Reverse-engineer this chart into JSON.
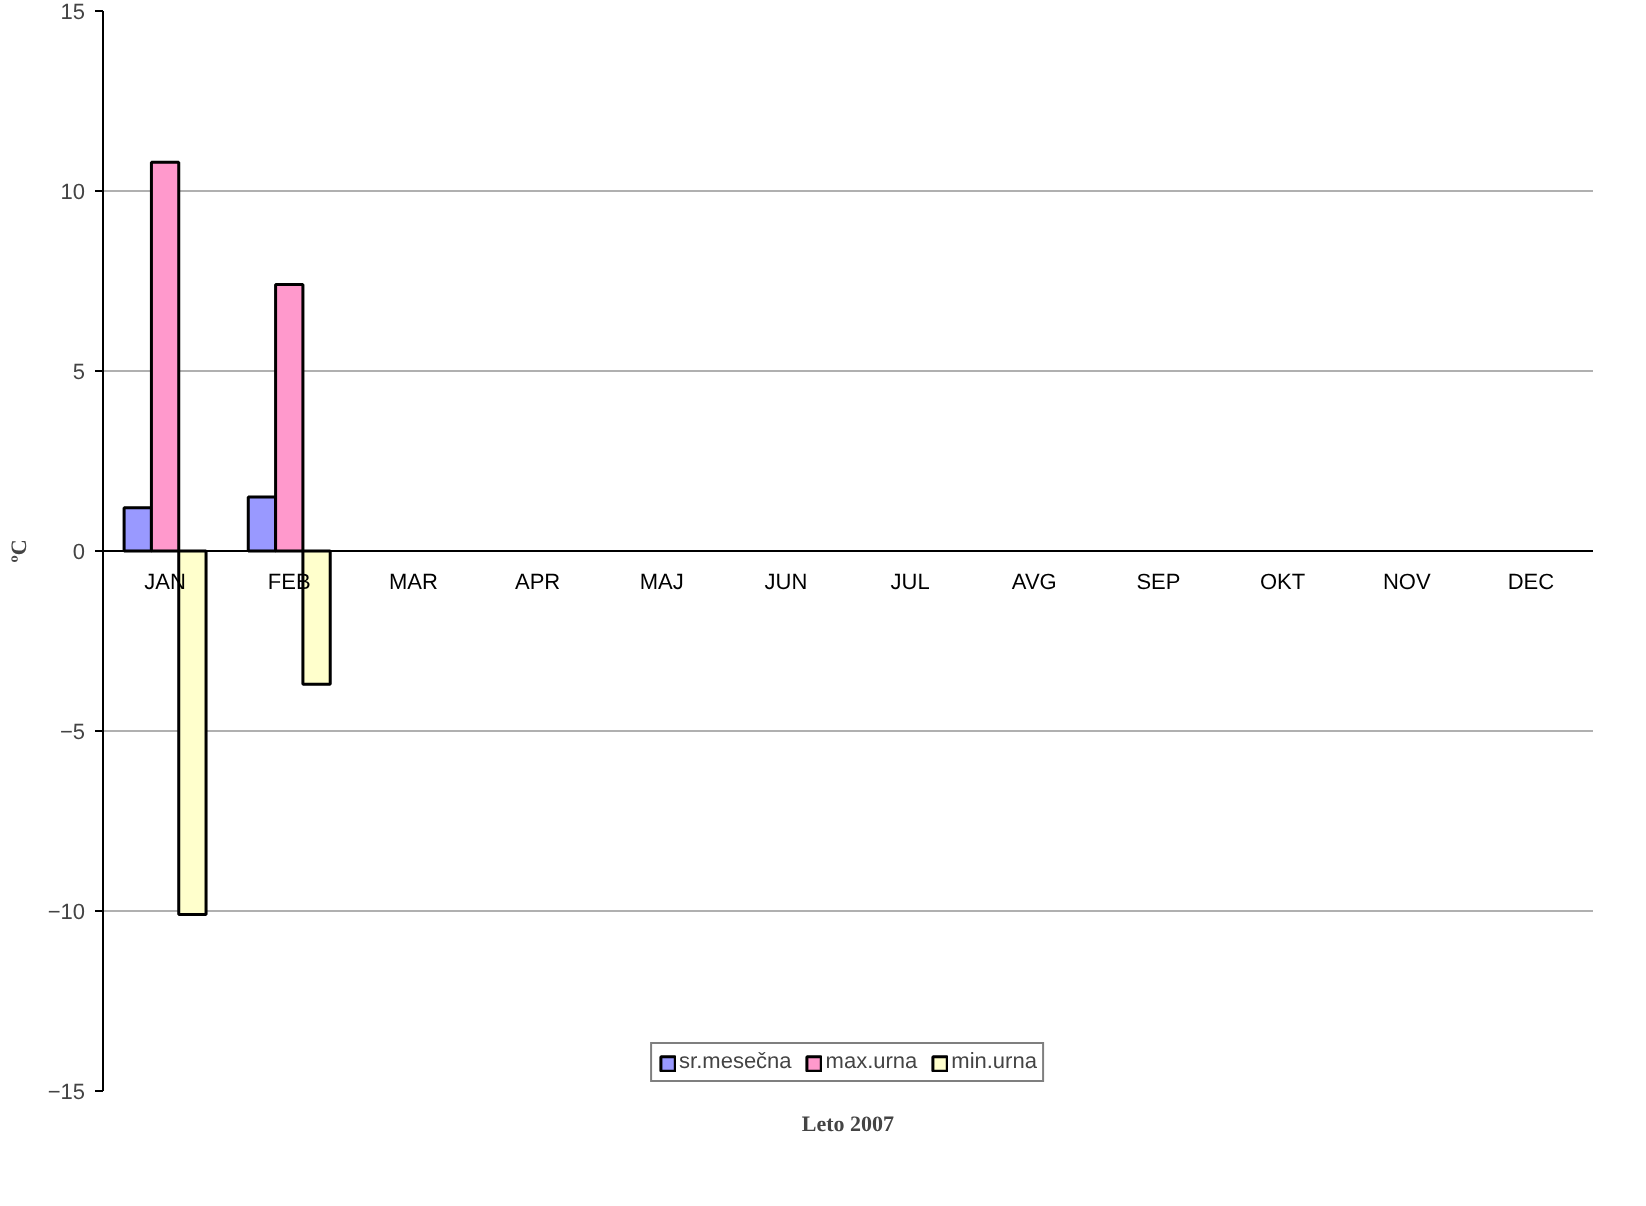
{
  "chart_data": {
    "type": "bar",
    "xlabel": "Leto 2007",
    "ylabel": "ºC",
    "categories": [
      "JAN",
      "FEB",
      "MAR",
      "APR",
      "MAJ",
      "JUN",
      "JUL",
      "AVG",
      "SEP",
      "OKT",
      "NOV",
      "DEC"
    ],
    "series": [
      {
        "name": "sr.mesečna",
        "color": "#9999ff",
        "values": [
          1.2,
          1.5,
          null,
          null,
          null,
          null,
          null,
          null,
          null,
          null,
          null,
          null
        ]
      },
      {
        "name": "max.urna",
        "color": "#ff99cc",
        "values": [
          10.8,
          7.4,
          null,
          null,
          null,
          null,
          null,
          null,
          null,
          null,
          null,
          null
        ]
      },
      {
        "name": "min.urna",
        "color": "#ffffcc",
        "values": [
          -10.1,
          -3.7,
          null,
          null,
          null,
          null,
          null,
          null,
          null,
          null,
          null,
          null
        ]
      }
    ],
    "ylim": [
      -15,
      15
    ],
    "yticks": [
      -15,
      -10,
      -5,
      0,
      5,
      10,
      15
    ],
    "grid": "y",
    "legend": "bottom"
  }
}
